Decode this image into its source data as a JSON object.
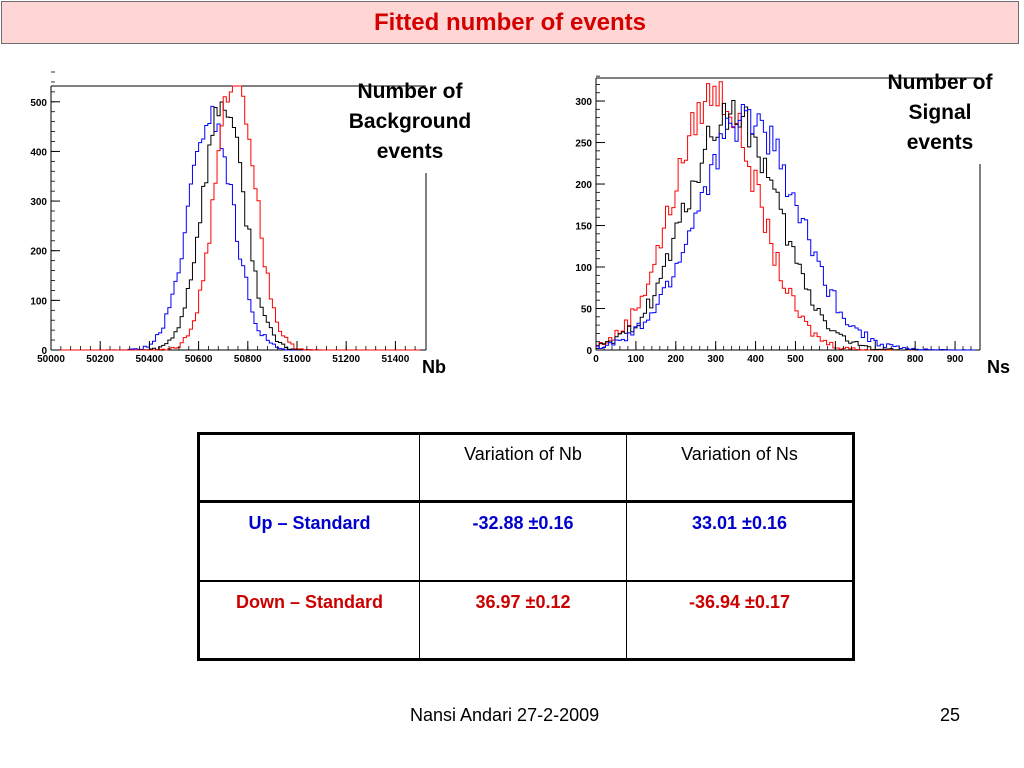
{
  "slide": {
    "title": "Fitted number of events",
    "footer": "Nansi Andari 27-2-2009",
    "page_number": "25"
  },
  "labels": {
    "background_chart": [
      "Number of",
      "Background",
      "events"
    ],
    "signal_chart": [
      "Number of",
      "Signal",
      "events"
    ],
    "nb_unit": "Nb",
    "ns_unit": "Ns"
  },
  "chart_data": [
    {
      "type": "area",
      "xlabel": "Nb",
      "xlim": [
        50000,
        51500
      ],
      "ylim": [
        0,
        560
      ],
      "x_ticks": [
        50000,
        50200,
        50400,
        50600,
        50800,
        51000,
        51200,
        51400
      ],
      "y_ticks": [
        100,
        200,
        300,
        400,
        500
      ],
      "y_tick_labels": [
        "0",
        "100",
        "200",
        "300",
        "400",
        "500"
      ],
      "grid": false,
      "series": [
        {
          "color": "#0000ff",
          "mean": 50650,
          "sigma": 90,
          "peak": 470
        },
        {
          "color": "#000000",
          "mean": 50700,
          "sigma": 85,
          "peak": 500
        },
        {
          "color": "#ff0000",
          "mean": 50750,
          "sigma": 80,
          "peak": 560
        }
      ]
    },
    {
      "type": "area",
      "xlabel": "Ns",
      "xlim": [
        0,
        950
      ],
      "ylim": [
        0,
        335
      ],
      "x_ticks": [
        0,
        100,
        200,
        300,
        400,
        500,
        600,
        700,
        800,
        900
      ],
      "y_ticks": [
        50,
        100,
        150,
        200,
        250,
        300
      ],
      "y_tick_labels": [
        "0",
        "50",
        "100",
        "150",
        "200",
        "250",
        "300"
      ],
      "grid": false,
      "series": [
        {
          "color": "#ff0000",
          "mean": 300,
          "sigma": 105,
          "peak": 310
        },
        {
          "color": "#000000",
          "mean": 340,
          "sigma": 115,
          "peak": 285
        },
        {
          "color": "#0000ff",
          "mean": 380,
          "sigma": 125,
          "peak": 280
        }
      ]
    }
  ],
  "table": {
    "headers": [
      "",
      "Variation of Nb",
      "Variation of Ns"
    ],
    "rows": [
      {
        "label": "Up – Standard",
        "nb": "-32.88 ±0.16",
        "ns": "33.01 ±0.16"
      },
      {
        "label": "Down – Standard",
        "nb": "36.97 ±0.12",
        "ns": "-36.94 ±0.17"
      }
    ]
  },
  "colors": {
    "title_background": "#ffd6d6",
    "title_text": "#d40000",
    "up_row": "#0000cc",
    "down_row": "#cc0000"
  }
}
